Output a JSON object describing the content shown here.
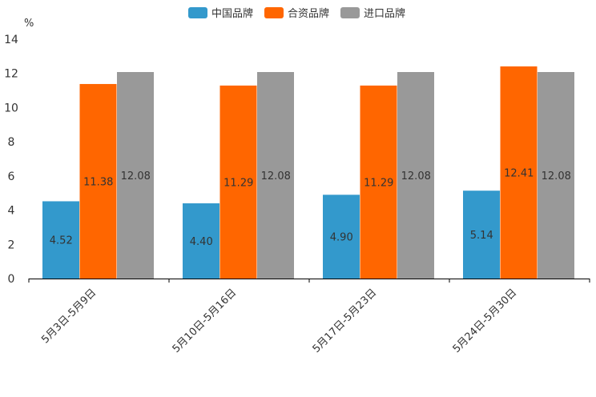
{
  "chart_data": {
    "type": "bar",
    "unit_label": "%",
    "categories": [
      "5月3日-5月9日",
      "5月10日-5月16日",
      "5月17日-5月23日",
      "5月24日-5月30日"
    ],
    "series": [
      {
        "name": "中国品牌",
        "color": "#3399cc",
        "values": [
          4.52,
          4.4,
          4.9,
          5.14
        ],
        "labels": [
          "4.52",
          "4.40",
          "4.90",
          "5.14"
        ]
      },
      {
        "name": "合资品牌",
        "color": "#ff6600",
        "values": [
          11.38,
          11.29,
          11.29,
          12.41
        ],
        "labels": [
          "11.38",
          "11.29",
          "11.29",
          "12.41"
        ]
      },
      {
        "name": "进口品牌",
        "color": "#999999",
        "values": [
          12.08,
          12.08,
          12.08,
          12.08
        ],
        "labels": [
          "12.08",
          "12.08",
          "12.08",
          "12.08"
        ]
      }
    ],
    "ylim": [
      0,
      14
    ],
    "yticks": [
      "0",
      "2",
      "4",
      "6",
      "8",
      "10",
      "12",
      "14"
    ],
    "legend_position": "top-center",
    "grid": false
  }
}
